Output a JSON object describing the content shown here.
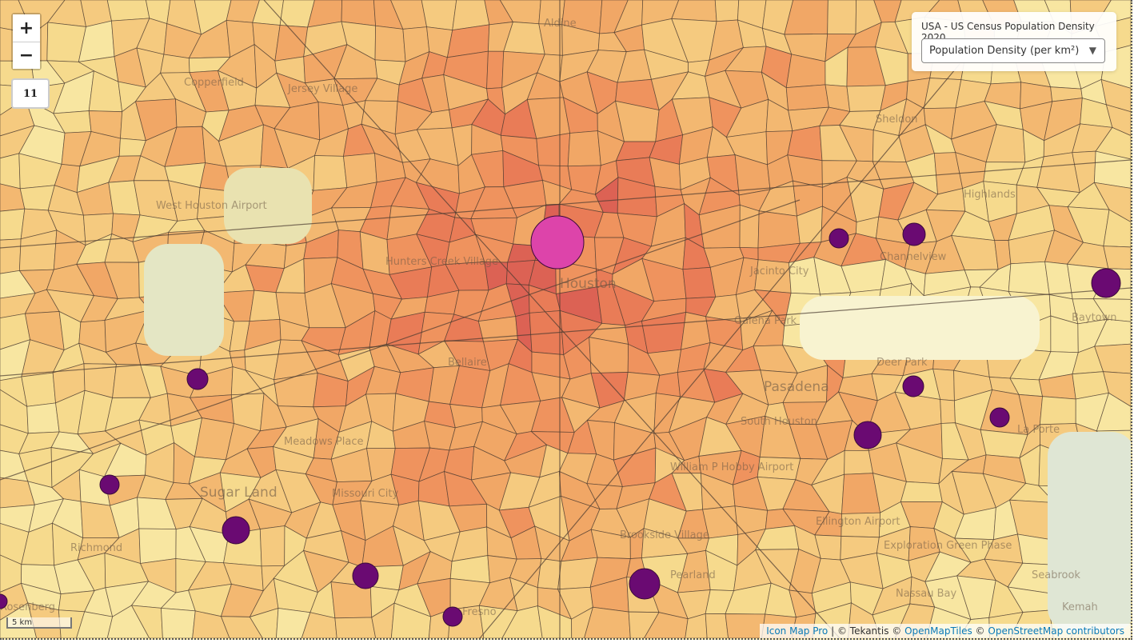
{
  "map": {
    "zoom_level": "11",
    "zoom_in_label": "+",
    "zoom_out_label": "−",
    "scale_label": "5 km",
    "choropleth_colors": [
      "#f8e6a0",
      "#f6d88a",
      "#f5c77a",
      "#f3b36a",
      "#f1a05e",
      "#ee8a55",
      "#e8704e",
      "#d9534a"
    ],
    "marker_colors": {
      "large": "#dd44aa",
      "small": "#6a0a72"
    },
    "places": [
      {
        "name": "Aldine"
      },
      {
        "name": "Copperfield"
      },
      {
        "name": "Jersey Village"
      },
      {
        "name": "Sheldon"
      },
      {
        "name": "Highlands"
      },
      {
        "name": "West Houston Airport"
      },
      {
        "name": "Channelview"
      },
      {
        "name": "Hunters Creek Village"
      },
      {
        "name": "Houston"
      },
      {
        "name": "Jacinto City"
      },
      {
        "name": "Galena Park"
      },
      {
        "name": "Baytown"
      },
      {
        "name": "Bellaire"
      },
      {
        "name": "Deer Park"
      },
      {
        "name": "Pasadena"
      },
      {
        "name": "La Porte"
      },
      {
        "name": "South Houston"
      },
      {
        "name": "Meadows Place"
      },
      {
        "name": "William P Hobby Airport"
      },
      {
        "name": "Sugar Land"
      },
      {
        "name": "Missouri City"
      },
      {
        "name": "Ellington Airport"
      },
      {
        "name": "Richmond"
      },
      {
        "name": "Brookside Village"
      },
      {
        "name": "Pearland"
      },
      {
        "name": "Exploration Green Phase"
      },
      {
        "name": "Seabrook"
      },
      {
        "name": "Kemah"
      },
      {
        "name": "Nassau Bay"
      },
      {
        "name": "Fresno"
      },
      {
        "name": "Rosenberg"
      }
    ]
  },
  "layer_panel": {
    "title": "USA - US Census Population Density 2020",
    "selected_metric": "Population Density (per km²)"
  },
  "attribution": {
    "icon_map_pro": "Icon Map Pro",
    "sep": " | © ",
    "tekantis": "Tekantis",
    "copy1": " © ",
    "openmaptiles": "OpenMapTiles",
    "copy2": " © ",
    "osm": "OpenStreetMap contributors"
  }
}
